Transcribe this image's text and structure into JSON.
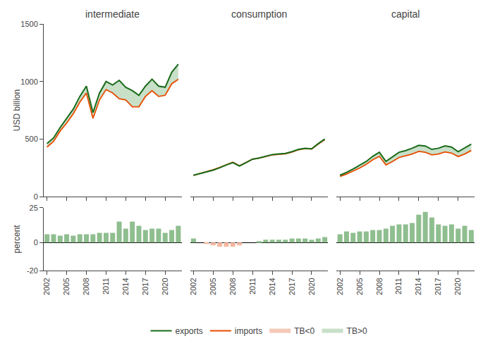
{
  "chart_data": [
    {
      "type": "line",
      "title": "intermediate",
      "x": [
        2002,
        2003,
        2004,
        2005,
        2006,
        2007,
        2008,
        2009,
        2010,
        2011,
        2012,
        2013,
        2014,
        2015,
        2016,
        2017,
        2018,
        2019,
        2020,
        2021,
        2022
      ],
      "series": [
        {
          "name": "exports",
          "color": "#1a6b1a",
          "values": [
            460,
            510,
            600,
            680,
            760,
            870,
            960,
            730,
            900,
            1000,
            970,
            1010,
            950,
            920,
            880,
            960,
            1020,
            960,
            950,
            1080,
            1150
          ]
        },
        {
          "name": "imports",
          "color": "#e84c00",
          "values": [
            430,
            480,
            570,
            640,
            720,
            820,
            900,
            680,
            840,
            930,
            900,
            850,
            840,
            780,
            780,
            870,
            920,
            870,
            880,
            980,
            1020
          ]
        },
        {
          "name": "TB<0",
          "type": "area",
          "color": "#f5c8b8"
        },
        {
          "name": "TB>0",
          "type": "area",
          "color": "#c8dfc8"
        }
      ],
      "xlim": [
        2001.5,
        2022.5
      ],
      "xticks": [
        2002,
        2005,
        2008,
        2011,
        2014,
        2017,
        2020
      ],
      "ylim": [
        0,
        1500
      ],
      "yticks": [
        0,
        500,
        1000,
        1500
      ],
      "ylabel": "USD billion",
      "grid": false,
      "legend": "bottom",
      "tick_labels": "y"
    },
    {
      "type": "line",
      "title": "consumption",
      "x": [
        2002,
        2003,
        2004,
        2005,
        2006,
        2007,
        2008,
        2009,
        2010,
        2011,
        2012,
        2013,
        2014,
        2015,
        2016,
        2017,
        2018,
        2019,
        2020,
        2021,
        2022
      ],
      "series": [
        {
          "name": "exports",
          "color": "#1a6b1a",
          "values": [
            185,
            200,
            215,
            230,
            250,
            275,
            295,
            265,
            295,
            325,
            335,
            350,
            365,
            370,
            375,
            390,
            410,
            420,
            415,
            460,
            500
          ]
        },
        {
          "name": "imports",
          "color": "#e84c00",
          "values": [
            185,
            200,
            217,
            233,
            254,
            278,
            298,
            268,
            295,
            325,
            334,
            347,
            362,
            367,
            372,
            386,
            407,
            417,
            413,
            456,
            495
          ]
        },
        {
          "name": "TB<0",
          "type": "area",
          "color": "#f5c8b8"
        },
        {
          "name": "TB>0",
          "type": "area",
          "color": "#c8dfc8"
        }
      ],
      "xlim": [
        2001.5,
        2022.5
      ],
      "xticks": [
        2002,
        2005,
        2008,
        2011,
        2014,
        2017,
        2020
      ],
      "ylim": [
        0,
        1500
      ],
      "yticks": [
        0,
        500,
        1000,
        1500
      ],
      "grid": false,
      "legend": "bottom",
      "tick_labels": false
    },
    {
      "type": "line",
      "title": "capital",
      "x": [
        2002,
        2003,
        2004,
        2005,
        2006,
        2007,
        2008,
        2009,
        2010,
        2011,
        2012,
        2013,
        2014,
        2015,
        2016,
        2017,
        2018,
        2019,
        2020,
        2021,
        2022
      ],
      "series": [
        {
          "name": "exports",
          "color": "#1a6b1a",
          "values": [
            185,
            210,
            240,
            270,
            305,
            350,
            385,
            305,
            345,
            385,
            400,
            420,
            445,
            440,
            410,
            420,
            440,
            430,
            390,
            420,
            455
          ]
        },
        {
          "name": "imports",
          "color": "#e84c00",
          "values": [
            175,
            195,
            222,
            248,
            280,
            320,
            350,
            275,
            305,
            340,
            355,
            370,
            392,
            385,
            362,
            370,
            388,
            378,
            348,
            370,
            400
          ]
        },
        {
          "name": "TB<0",
          "type": "area",
          "color": "#f5c8b8"
        },
        {
          "name": "TB>0",
          "type": "area",
          "color": "#c8dfc8"
        }
      ],
      "xlim": [
        2001.5,
        2022.5
      ],
      "xticks": [
        2002,
        2005,
        2008,
        2011,
        2014,
        2017,
        2020
      ],
      "ylim": [
        0,
        1500
      ],
      "yticks": [
        0,
        500,
        1000,
        1500
      ],
      "grid": false,
      "legend": "bottom",
      "tick_labels": false
    },
    {
      "type": "bar",
      "x": [
        2002,
        2003,
        2004,
        2005,
        2006,
        2007,
        2008,
        2009,
        2010,
        2011,
        2012,
        2013,
        2014,
        2015,
        2016,
        2017,
        2018,
        2019,
        2020,
        2021,
        2022
      ],
      "values": [
        6,
        6,
        5,
        6,
        5,
        6,
        6,
        6,
        7,
        7,
        7,
        15,
        10,
        15,
        12,
        9,
        10,
        10,
        7,
        9,
        12
      ],
      "colors": [
        "#8fbe8f",
        "#8fbe8f",
        "#8fbe8f",
        "#8fbe8f",
        "#8fbe8f",
        "#8fbe8f",
        "#8fbe8f",
        "#8fbe8f",
        "#8fbe8f",
        "#8fbe8f",
        "#8fbe8f",
        "#8fbe8f",
        "#8fbe8f",
        "#8fbe8f",
        "#8fbe8f",
        "#8fbe8f",
        "#8fbe8f",
        "#8fbe8f",
        "#8fbe8f",
        "#8fbe8f",
        "#8fbe8f"
      ],
      "xlim": [
        2001.5,
        2022.5
      ],
      "xticks": [
        2002,
        2005,
        2008,
        2011,
        2014,
        2017,
        2020
      ],
      "ylim": [
        -20,
        25
      ],
      "yticks": [
        -20,
        0,
        25
      ],
      "ylabel": "percent",
      "grid": false,
      "tick_labels": true
    },
    {
      "type": "bar",
      "x": [
        2002,
        2003,
        2004,
        2005,
        2006,
        2007,
        2008,
        2009,
        2010,
        2011,
        2012,
        2013,
        2014,
        2015,
        2016,
        2017,
        2018,
        2019,
        2020,
        2021,
        2022
      ],
      "values": [
        3,
        0,
        -1,
        -2,
        -3,
        -3,
        -3,
        -2,
        0,
        0,
        1,
        2,
        2,
        2,
        2,
        3,
        3,
        3,
        2,
        3,
        4
      ],
      "colors": [
        "#8fbe8f",
        "#8fbe8f",
        "#f5b8a0",
        "#f5b8a0",
        "#f5b8a0",
        "#f5b8a0",
        "#f5b8a0",
        "#f5b8a0",
        "#8fbe8f",
        "#8fbe8f",
        "#8fbe8f",
        "#8fbe8f",
        "#8fbe8f",
        "#8fbe8f",
        "#8fbe8f",
        "#8fbe8f",
        "#8fbe8f",
        "#8fbe8f",
        "#8fbe8f",
        "#8fbe8f",
        "#8fbe8f"
      ],
      "xlim": [
        2001.5,
        2022.5
      ],
      "xticks": [
        2002,
        2005,
        2008,
        2011,
        2014,
        2017,
        2020
      ],
      "ylim": [
        -20,
        25
      ],
      "yticks": [
        -20,
        0,
        25
      ],
      "grid": false,
      "tick_labels": "x"
    },
    {
      "type": "bar",
      "x": [
        2002,
        2003,
        2004,
        2005,
        2006,
        2007,
        2008,
        2009,
        2010,
        2011,
        2012,
        2013,
        2014,
        2015,
        2016,
        2017,
        2018,
        2019,
        2020,
        2021,
        2022
      ],
      "values": [
        6,
        8,
        7,
        8,
        8,
        9,
        9,
        10,
        12,
        13,
        13,
        14,
        20,
        22,
        18,
        13,
        12,
        13,
        10,
        12,
        9
      ],
      "colors": [
        "#8fbe8f",
        "#8fbe8f",
        "#8fbe8f",
        "#8fbe8f",
        "#8fbe8f",
        "#8fbe8f",
        "#8fbe8f",
        "#8fbe8f",
        "#8fbe8f",
        "#8fbe8f",
        "#8fbe8f",
        "#8fbe8f",
        "#8fbe8f",
        "#8fbe8f",
        "#8fbe8f",
        "#8fbe8f",
        "#8fbe8f",
        "#8fbe8f",
        "#8fbe8f",
        "#8fbe8f",
        "#8fbe8f"
      ],
      "xlim": [
        2001.5,
        2022.5
      ],
      "xticks": [
        2002,
        2005,
        2008,
        2011,
        2014,
        2017,
        2020
      ],
      "ylim": [
        -20,
        25
      ],
      "yticks": [
        -20,
        0,
        25
      ],
      "grid": false,
      "tick_labels": "x"
    }
  ]
}
